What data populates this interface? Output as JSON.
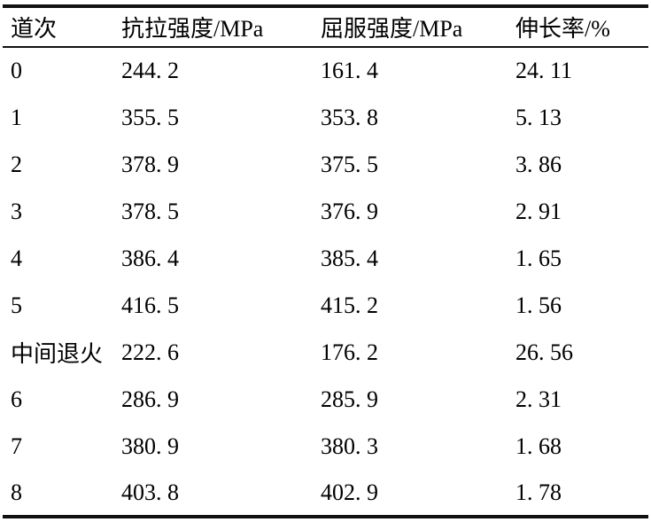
{
  "table": {
    "columns": [
      "道次",
      "抗拉强度/MPa",
      "屈服强度/MPa",
      "伸长率/%"
    ],
    "rows": [
      [
        "0",
        "244. 2",
        "161. 4",
        "24. 11"
      ],
      [
        "1",
        "355. 5",
        "353. 8",
        "5. 13"
      ],
      [
        "2",
        "378. 9",
        "375. 5",
        "3. 86"
      ],
      [
        "3",
        "378. 5",
        "376. 9",
        "2. 91"
      ],
      [
        "4",
        "386. 4",
        "385. 4",
        "1. 65"
      ],
      [
        "5",
        "416. 5",
        "415. 2",
        "1. 56"
      ],
      [
        "中间退火",
        "222. 6",
        "176. 2",
        "26. 56"
      ],
      [
        "6",
        "286. 9",
        "285. 9",
        "2. 31"
      ],
      [
        "7",
        "380. 9",
        "380. 3",
        "1. 68"
      ],
      [
        "8",
        "403. 8",
        "402. 9",
        "1. 78"
      ]
    ]
  },
  "chart_data": {
    "type": "table",
    "title": "",
    "columns": [
      "道次",
      "抗拉强度/MPa",
      "屈服强度/MPa",
      "伸长率/%"
    ],
    "passes": [
      "0",
      "1",
      "2",
      "3",
      "4",
      "5",
      "中间退火",
      "6",
      "7",
      "8"
    ],
    "series": [
      {
        "name": "抗拉强度/MPa",
        "values": [
          244.2,
          355.5,
          378.9,
          378.5,
          386.4,
          416.5,
          222.6,
          286.9,
          380.9,
          403.8
        ]
      },
      {
        "name": "屈服强度/MPa",
        "values": [
          161.4,
          353.8,
          375.5,
          376.9,
          385.4,
          415.2,
          176.2,
          285.9,
          380.3,
          402.9
        ]
      },
      {
        "name": "伸长率/%",
        "values": [
          24.11,
          5.13,
          3.86,
          2.91,
          1.65,
          1.56,
          26.56,
          2.31,
          1.68,
          1.78
        ]
      }
    ]
  },
  "colors": {
    "rule": "#111111",
    "text": "#000000",
    "background": "#ffffff"
  }
}
